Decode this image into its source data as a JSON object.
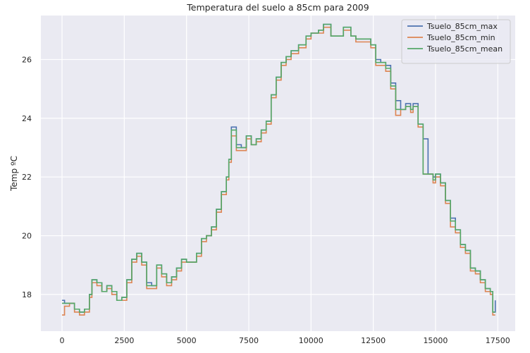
{
  "chart_data": {
    "type": "line",
    "title": "Temperatura del suelo a 85cm para 2009",
    "xlabel": "",
    "ylabel": "Temp ºC",
    "xlim": [
      -850,
      18200
    ],
    "ylim": [
      16.75,
      27.5
    ],
    "xticks": [
      0,
      2500,
      5000,
      7500,
      10000,
      12500,
      15000,
      17500
    ],
    "yticks": [
      18,
      20,
      22,
      24,
      26
    ],
    "grid": true,
    "legend_position": "top-right",
    "series": [
      {
        "name": "Tsuelo_85cm_max",
        "color": "#4c72b0",
        "x": [
          0,
          100,
          300,
          500,
          700,
          900,
          1100,
          1200,
          1400,
          1600,
          1800,
          2000,
          2200,
          2400,
          2600,
          2800,
          3000,
          3200,
          3400,
          3600,
          3800,
          4000,
          4200,
          4400,
          4600,
          4800,
          5000,
          5200,
          5400,
          5600,
          5800,
          6000,
          6200,
          6400,
          6600,
          6700,
          6800,
          7000,
          7200,
          7400,
          7600,
          7800,
          8000,
          8200,
          8400,
          8600,
          8800,
          9000,
          9200,
          9500,
          9800,
          10000,
          10300,
          10500,
          10800,
          11000,
          11300,
          11600,
          11800,
          12100,
          12400,
          12600,
          12800,
          13000,
          13200,
          13400,
          13600,
          13800,
          14000,
          14100,
          14300,
          14500,
          14700,
          14900,
          15000,
          15200,
          15400,
          15600,
          15800,
          16000,
          16200,
          16400,
          16600,
          16800,
          17000,
          17200,
          17300,
          17400
        ],
        "y": [
          17.8,
          17.7,
          17.7,
          17.5,
          17.4,
          17.5,
          18.0,
          18.5,
          18.4,
          18.1,
          18.3,
          18.1,
          17.8,
          17.9,
          18.5,
          19.2,
          19.4,
          19.1,
          18.4,
          18.3,
          19.0,
          18.7,
          18.4,
          18.6,
          18.9,
          19.2,
          19.1,
          19.1,
          19.4,
          19.9,
          20.0,
          20.3,
          20.9,
          21.5,
          22.0,
          22.6,
          23.7,
          23.1,
          23.0,
          23.4,
          23.1,
          23.3,
          23.6,
          23.9,
          24.8,
          25.4,
          25.9,
          26.1,
          26.3,
          26.5,
          26.8,
          26.9,
          27.0,
          27.2,
          26.8,
          26.8,
          27.1,
          26.8,
          26.7,
          26.7,
          26.5,
          26.0,
          25.9,
          25.8,
          25.2,
          24.6,
          24.3,
          24.5,
          24.3,
          24.5,
          23.8,
          23.3,
          22.1,
          22.0,
          22.1,
          21.8,
          21.2,
          20.6,
          20.2,
          19.7,
          19.5,
          18.9,
          18.8,
          18.5,
          18.2,
          18.1,
          17.4,
          17.8
        ],
        "drawstyle": "steps-post"
      },
      {
        "name": "Tsuelo_85cm_min",
        "color": "#dd8452",
        "x": [
          0,
          100,
          300,
          500,
          700,
          900,
          1100,
          1200,
          1400,
          1600,
          1800,
          2000,
          2200,
          2400,
          2600,
          2800,
          3000,
          3200,
          3400,
          3600,
          3800,
          4000,
          4200,
          4400,
          4600,
          4800,
          5000,
          5200,
          5400,
          5600,
          5800,
          6000,
          6200,
          6400,
          6600,
          6700,
          6800,
          7000,
          7200,
          7400,
          7600,
          7800,
          8000,
          8200,
          8400,
          8600,
          8800,
          9000,
          9200,
          9500,
          9800,
          10000,
          10300,
          10500,
          10800,
          11000,
          11300,
          11600,
          11800,
          12100,
          12400,
          12600,
          12800,
          13000,
          13200,
          13400,
          13600,
          13800,
          14000,
          14100,
          14300,
          14500,
          14700,
          14900,
          15000,
          15200,
          15400,
          15600,
          15800,
          16000,
          16200,
          16400,
          16600,
          16800,
          17000,
          17200,
          17300,
          17400
        ],
        "y": [
          17.3,
          17.6,
          17.7,
          17.4,
          17.3,
          17.4,
          17.9,
          18.4,
          18.3,
          18.1,
          18.2,
          18.0,
          17.8,
          17.8,
          18.4,
          19.1,
          19.3,
          19.0,
          18.2,
          18.2,
          18.9,
          18.6,
          18.3,
          18.5,
          18.8,
          19.1,
          19.1,
          19.1,
          19.3,
          19.8,
          20.0,
          20.2,
          20.8,
          21.4,
          21.9,
          22.5,
          23.4,
          22.9,
          22.9,
          23.3,
          23.1,
          23.2,
          23.5,
          23.8,
          24.7,
          25.3,
          25.8,
          26.0,
          26.2,
          26.4,
          26.7,
          26.9,
          26.9,
          27.1,
          26.8,
          26.8,
          27.0,
          26.8,
          26.6,
          26.6,
          26.4,
          25.8,
          25.8,
          25.6,
          25.0,
          24.1,
          24.3,
          24.4,
          24.2,
          24.4,
          23.7,
          22.1,
          22.1,
          21.8,
          22.0,
          21.7,
          21.1,
          20.3,
          20.1,
          19.6,
          19.4,
          18.8,
          18.7,
          18.4,
          18.1,
          18.0,
          17.3,
          17.3
        ],
        "drawstyle": "steps-post"
      },
      {
        "name": "Tsuelo_85cm_mean",
        "color": "#55a868",
        "x": [
          0,
          100,
          300,
          500,
          700,
          900,
          1100,
          1200,
          1400,
          1600,
          1800,
          2000,
          2200,
          2400,
          2600,
          2800,
          3000,
          3200,
          3400,
          3600,
          3800,
          4000,
          4200,
          4400,
          4600,
          4800,
          5000,
          5200,
          5400,
          5600,
          5800,
          6000,
          6200,
          6400,
          6600,
          6700,
          6800,
          7000,
          7200,
          7400,
          7600,
          7800,
          8000,
          8200,
          8400,
          8600,
          8800,
          9000,
          9200,
          9500,
          9800,
          10000,
          10300,
          10500,
          10800,
          11000,
          11300,
          11600,
          11800,
          12100,
          12400,
          12600,
          12800,
          13000,
          13200,
          13400,
          13600,
          13800,
          14000,
          14100,
          14300,
          14500,
          14700,
          14900,
          15000,
          15200,
          15400,
          15600,
          15800,
          16000,
          16200,
          16400,
          16600,
          16800,
          17000,
          17200,
          17300,
          17400
        ],
        "y": [
          17.7,
          17.7,
          17.7,
          17.5,
          17.4,
          17.5,
          18.0,
          18.5,
          18.4,
          18.1,
          18.3,
          18.1,
          17.8,
          17.9,
          18.5,
          19.2,
          19.4,
          19.1,
          18.3,
          18.3,
          19.0,
          18.7,
          18.4,
          18.6,
          18.9,
          19.2,
          19.1,
          19.1,
          19.4,
          19.9,
          20.0,
          20.3,
          20.9,
          21.5,
          22.0,
          22.6,
          23.6,
          23.0,
          23.0,
          23.4,
          23.1,
          23.3,
          23.6,
          23.9,
          24.8,
          25.4,
          25.9,
          26.1,
          26.3,
          26.5,
          26.8,
          26.9,
          27.0,
          27.2,
          26.8,
          26.8,
          27.1,
          26.8,
          26.7,
          26.7,
          26.5,
          25.9,
          25.9,
          25.7,
          25.1,
          24.3,
          24.3,
          24.4,
          24.3,
          24.4,
          23.8,
          22.1,
          22.1,
          21.9,
          22.1,
          21.8,
          21.2,
          20.5,
          20.2,
          19.7,
          19.5,
          18.9,
          18.8,
          18.5,
          18.2,
          18.1,
          17.4,
          17.4
        ],
        "drawstyle": "steps-post"
      }
    ]
  }
}
